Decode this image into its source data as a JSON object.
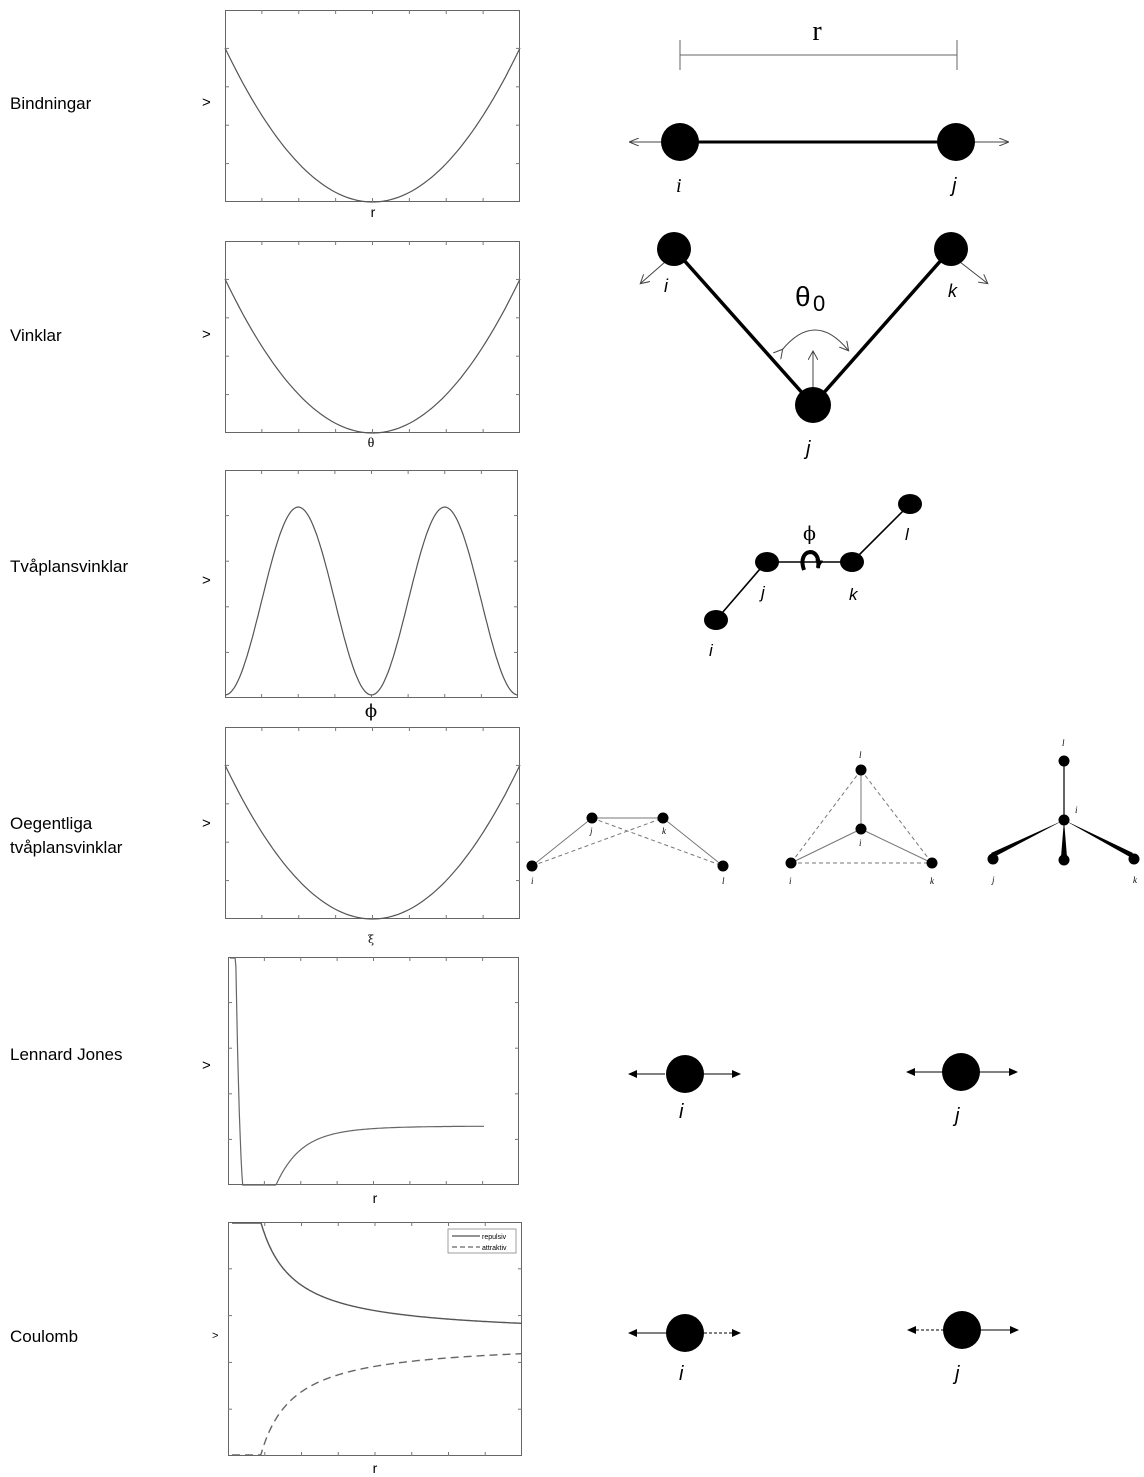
{
  "rows": [
    {
      "label": "Bindningar",
      "ylabel": ">",
      "xlabel": "r"
    },
    {
      "label": "Vinklar",
      "ylabel": ">",
      "xlabel": "θ"
    },
    {
      "label": "Tvåplansvinklar",
      "ylabel": ">",
      "xlabel": "ϕ"
    },
    {
      "label_line1": "Oegentliga",
      "label_line2": "tvåplansvinklar",
      "ylabel": ">",
      "xlabel": "ξ"
    },
    {
      "label": "Lennard Jones",
      "ylabel": ">",
      "xlabel": "r"
    },
    {
      "label": "Coulomb",
      "ylabel": ">",
      "xlabel": "r"
    }
  ],
  "coulomb_legend": {
    "repulsive": "repulsiv",
    "attractive": "attraktiv"
  },
  "diagram_labels": {
    "bond_distance": "r",
    "angle_symbol": "θ",
    "angle_sub": "0",
    "dihedral_symbol": "ϕ",
    "atom_i": "i",
    "atom_j": "j",
    "atom_k": "k",
    "atom_l": "l"
  }
}
